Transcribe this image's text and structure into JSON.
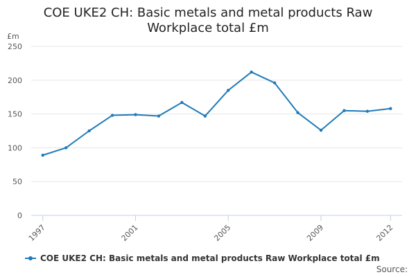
{
  "chart_data": {
    "type": "line",
    "title_lines": [
      "COE UKE2 CH: Basic metals and metal products Raw",
      "Workplace total £m"
    ],
    "ylabel": "£m",
    "xlabel": "",
    "ylim": [
      0,
      250
    ],
    "y_ticks": [
      0,
      50,
      100,
      150,
      200,
      250
    ],
    "x_ticks": [
      1997,
      2001,
      2005,
      2009,
      2012
    ],
    "grid": "horizontal",
    "legend_position": "bottom-left",
    "series": [
      {
        "name": "COE UKE2 CH: Basic metals and metal products Raw Workplace total £m",
        "color": "#1f7ab8",
        "x": [
          1997,
          1998,
          1999,
          2000,
          2001,
          2002,
          2003,
          2004,
          2005,
          2006,
          2007,
          2008,
          2009,
          2010,
          2011,
          2012
        ],
        "values": [
          89,
          100,
          125,
          148,
          149,
          147,
          167,
          147,
          185,
          212,
          196,
          152,
          126,
          155,
          154,
          158
        ]
      }
    ]
  },
  "source_label": "Source:"
}
